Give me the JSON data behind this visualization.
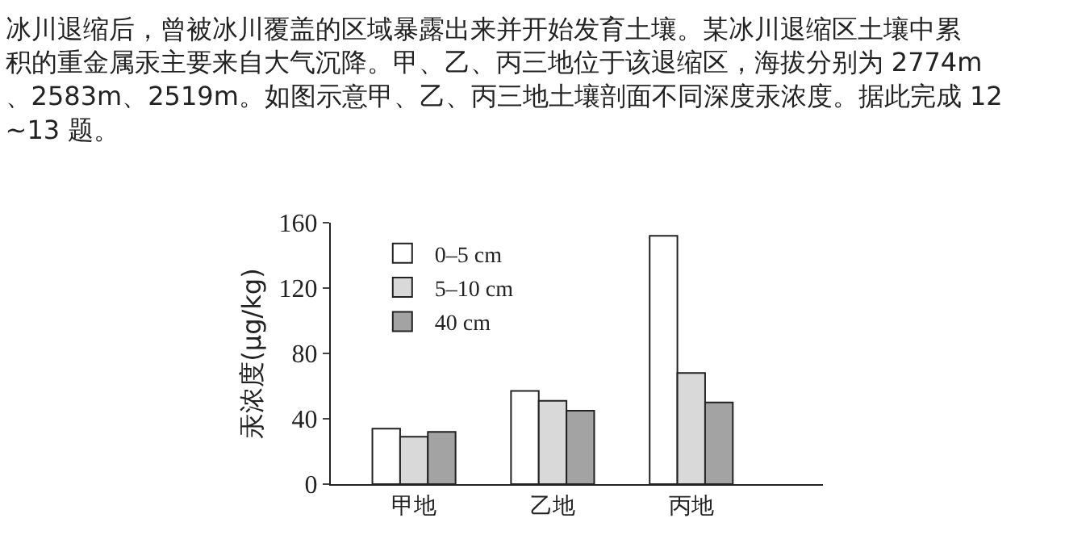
{
  "chart_data": {
    "type": "bar",
    "title": "冰川退缩后，曾被冰川覆盖的区域暴露出来并开始发育土壤。某冰川退缩区土壤中累积的重金属汞主要来自大气沉降。甲、乙、丙三地位于该退缩区，海拔分别为 2774m、2583m、2519m。如图示意甲、乙、丙三地土壤剖面不同深度汞浓度。据此完成 12~13 题。",
    "ylabel": "汞浓度(μg/kg)",
    "categories": [
      "甲地",
      "乙地",
      "丙地"
    ],
    "series": [
      {
        "name": "0–5 cm",
        "color": "#ffffff",
        "values": [
          34,
          57,
          152
        ]
      },
      {
        "name": "5–10 cm",
        "color": "#d9d9d9",
        "values": [
          29,
          51,
          68
        ]
      },
      {
        "name": "40 cm",
        "color": "#a3a3a3",
        "values": [
          32,
          45,
          50
        ]
      }
    ],
    "ylim": [
      0,
      160
    ],
    "yticks": [
      0,
      40,
      80,
      120,
      160
    ],
    "legend": "top left"
  }
}
